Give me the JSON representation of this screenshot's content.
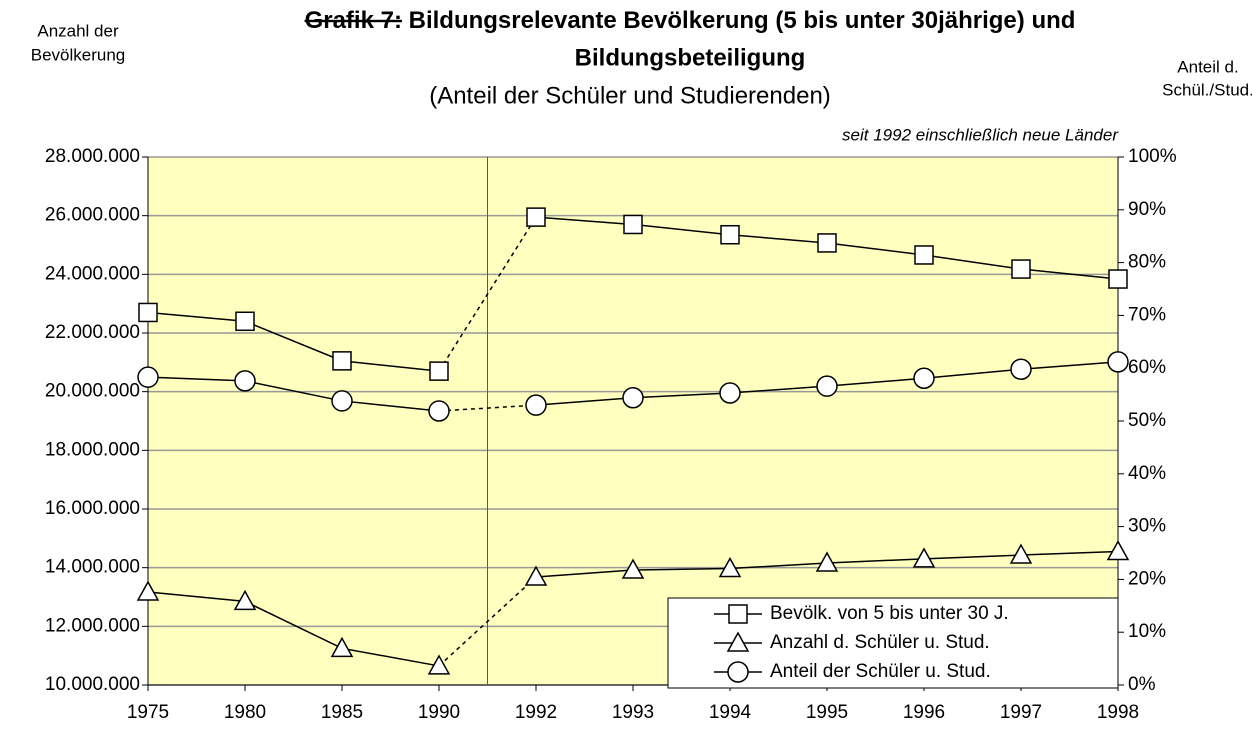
{
  "chart_data": {
    "type": "line",
    "title_prefix": "Grafik 7:",
    "title": [
      "Bildungsrelevante Bevölkerung (5 bis unter 30jährige) und",
      "Bildungsbeteiligung"
    ],
    "subtitle": "(Anteil der Schüler und Studierenden)",
    "ylabel": [
      "Anzahl der",
      "Bevölkerung"
    ],
    "y2label": [
      "Anteil d.",
      "Schül./Stud."
    ],
    "annotation": "seit 1992 einschließlich neue Länder",
    "categories": [
      "1975",
      "1980",
      "1985",
      "1990",
      "1992",
      "1993",
      "1994",
      "1995",
      "1996",
      "1997",
      "1998"
    ],
    "break_after": "1990",
    "series": [
      {
        "name": "Bevölk. von 5 bis unter 30 J.",
        "color": "#000000",
        "marker": "square",
        "values": [
          22700000,
          22400000,
          21050000,
          20700000,
          25950000,
          25700000,
          25350000,
          25070000,
          24660000,
          24180000,
          23840000
        ]
      },
      {
        "name": "Anzahl d. Schüler u. Stud.",
        "color": "#000000",
        "marker": "triangle",
        "values": [
          13170000,
          12850000,
          11250000,
          10650000,
          13680000,
          13920000,
          13970000,
          14160000,
          14300000,
          14430000,
          14550000
        ]
      },
      {
        "name": "Anteil der Schüler u. Stud.",
        "color": "#000000",
        "marker": "circle",
        "axis": "y2",
        "values": [
          58.3,
          57.6,
          53.8,
          51.9,
          53.0,
          54.4,
          55.3,
          56.6,
          58.1,
          59.8,
          61.2
        ]
      }
    ],
    "ylim": [
      10000000,
      28000000
    ],
    "yticks": [
      {
        "value": 10000000,
        "label": "10.000.000"
      },
      {
        "value": 12000000,
        "label": "12.000.000"
      },
      {
        "value": 14000000,
        "label": "14.000.000"
      },
      {
        "value": 16000000,
        "label": "16.000.000"
      },
      {
        "value": 18000000,
        "label": "18.000.000"
      },
      {
        "value": 20000000,
        "label": "20.000.000"
      },
      {
        "value": 22000000,
        "label": "22.000.000"
      },
      {
        "value": 24000000,
        "label": "24.000.000"
      },
      {
        "value": 26000000,
        "label": "26.000.000"
      },
      {
        "value": 28000000,
        "label": "28.000.000"
      }
    ],
    "y2lim": [
      0,
      100
    ],
    "y2ticks": [
      {
        "value": 0,
        "label": "0%"
      },
      {
        "value": 10,
        "label": "10%"
      },
      {
        "value": 20,
        "label": "20%"
      },
      {
        "value": 30,
        "label": "30%"
      },
      {
        "value": 40,
        "label": "40%"
      },
      {
        "value": 50,
        "label": "50%"
      },
      {
        "value": 60,
        "label": "60%"
      },
      {
        "value": 70,
        "label": "70%"
      },
      {
        "value": 80,
        "label": "80%"
      },
      {
        "value": 90,
        "label": "90%"
      },
      {
        "value": 100,
        "label": "100%"
      }
    ],
    "grid": true,
    "background": "#ffffc0",
    "divider_color": "#e02020",
    "legend": "lower right"
  }
}
